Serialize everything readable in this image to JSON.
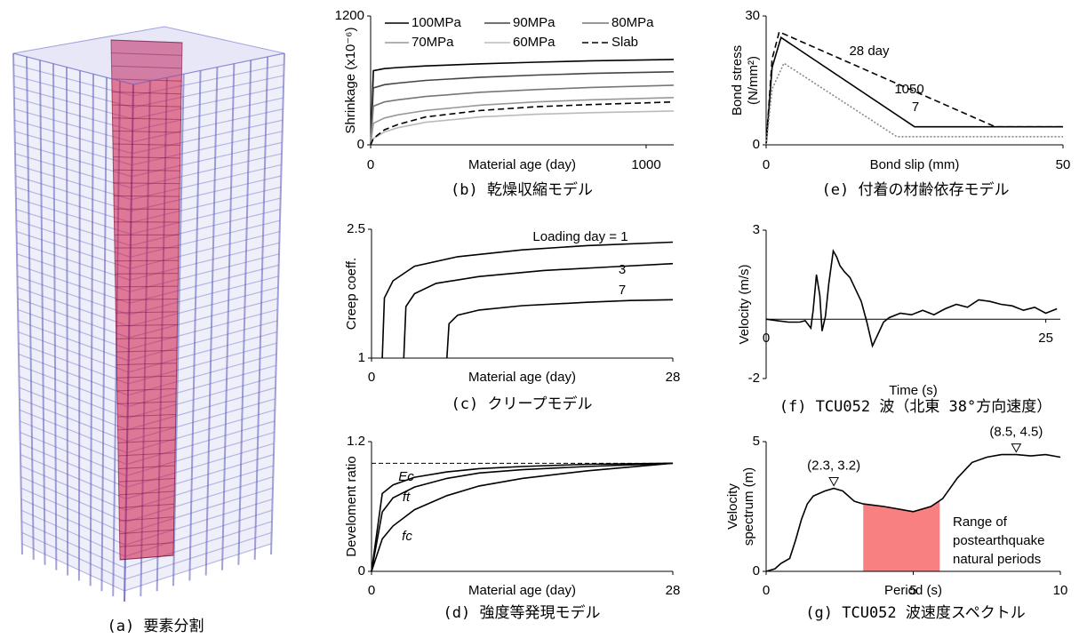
{
  "figure_a": {
    "caption": "(a) 要素分割"
  },
  "chart_data": [
    {
      "type": "line",
      "caption": "(b) 乾燥収縮モデル",
      "xlabel": "Material age (day)",
      "ylabel": [
        "Shrinkage (x10⁻⁶)"
      ],
      "xlim": [
        0,
        1100
      ],
      "xticks": [
        0,
        1000
      ],
      "ylim": [
        0,
        1200
      ],
      "yticks": [
        0,
        1200
      ],
      "legend": true,
      "x": [
        0,
        10,
        50,
        100,
        200,
        400,
        600,
        800,
        1100
      ],
      "series": [
        {
          "name": "100MPa",
          "color": "#000000",
          "dash": "solid",
          "values": [
            0,
            690,
            710,
            720,
            735,
            755,
            770,
            783,
            795
          ]
        },
        {
          "name": "90MPa",
          "color": "#444444",
          "dash": "solid",
          "values": [
            0,
            530,
            560,
            575,
            600,
            630,
            650,
            665,
            680
          ]
        },
        {
          "name": "80MPa",
          "color": "#777777",
          "dash": "solid",
          "values": [
            0,
            360,
            400,
            420,
            450,
            490,
            515,
            535,
            555
          ]
        },
        {
          "name": "70MPa",
          "color": "#999999",
          "dash": "solid",
          "values": [
            0,
            200,
            250,
            280,
            320,
            370,
            400,
            420,
            440
          ]
        },
        {
          "name": "60MPa",
          "color": "#bbbbbb",
          "dash": "solid",
          "values": [
            0,
            60,
            120,
            160,
            210,
            260,
            285,
            300,
            315
          ]
        },
        {
          "name": "Slab",
          "color": "#000000",
          "dash": "dashed",
          "values": [
            0,
            60,
            140,
            190,
            260,
            320,
            355,
            375,
            400
          ]
        }
      ]
    },
    {
      "type": "line",
      "caption": "(c) クリープモデル",
      "xlabel": "Material age (day)",
      "ylabel": [
        "Creep coeff."
      ],
      "xlim": [
        0,
        28
      ],
      "xticks": [
        0,
        28
      ],
      "ylim": [
        1,
        2.5
      ],
      "yticks": [
        1,
        2.5
      ],
      "series": [
        {
          "name": "Loading day = 1",
          "color": "#000000",
          "dash": "solid",
          "x": [
            1,
            1.2,
            2,
            4,
            8,
            14,
            20,
            28
          ],
          "values": [
            1,
            1.7,
            1.9,
            2.07,
            2.18,
            2.26,
            2.31,
            2.35
          ]
        },
        {
          "name": "3",
          "color": "#000000",
          "dash": "solid",
          "x": [
            3,
            3.2,
            4,
            6,
            10,
            16,
            22,
            28
          ],
          "values": [
            1,
            1.6,
            1.75,
            1.87,
            1.95,
            2.02,
            2.06,
            2.1
          ]
        },
        {
          "name": "7",
          "color": "#000000",
          "dash": "solid",
          "x": [
            7,
            7.2,
            8,
            10,
            14,
            20,
            24,
            28
          ],
          "values": [
            1,
            1.4,
            1.5,
            1.56,
            1.61,
            1.65,
            1.67,
            1.68
          ]
        }
      ]
    },
    {
      "type": "line",
      "caption": "(d) 強度等発現モデル",
      "xlabel": "Material age (day)",
      "ylabel": [
        "Develoment ratio"
      ],
      "xlim": [
        0,
        28
      ],
      "xticks": [
        0,
        28
      ],
      "ylim": [
        0,
        1.2
      ],
      "yticks": [
        0,
        1.2
      ],
      "ref_line": 1,
      "x": [
        0,
        1,
        2,
        4,
        7,
        10,
        14,
        20,
        28
      ],
      "series": [
        {
          "name": "Ec",
          "color": "#000000",
          "dash": "solid",
          "values": [
            0,
            0.72,
            0.8,
            0.87,
            0.92,
            0.95,
            0.97,
            0.99,
            1.0
          ]
        },
        {
          "name": "ft",
          "color": "#000000",
          "dash": "solid",
          "values": [
            0,
            0.55,
            0.68,
            0.78,
            0.86,
            0.91,
            0.94,
            0.97,
            1.0
          ]
        },
        {
          "name": "fc",
          "color": "#000000",
          "dash": "solid",
          "values": [
            0,
            0.3,
            0.42,
            0.57,
            0.7,
            0.79,
            0.86,
            0.93,
            1.0
          ]
        }
      ]
    },
    {
      "type": "line",
      "caption": "(e) 付着の材齢依存モデル",
      "xlabel": "Bond slip (mm)",
      "ylabel": [
        "Bond stress",
        "(N/mm²)"
      ],
      "xlim": [
        0,
        50
      ],
      "xticks": [
        0,
        50
      ],
      "ylim": [
        0,
        30
      ],
      "yticks": [
        0,
        30
      ],
      "series": [
        {
          "name": "28 day",
          "color": "#000000",
          "dash": "dashed",
          "x": [
            0,
            1,
            2.2,
            38.6,
            50
          ],
          "values": [
            0,
            20,
            26.3,
            4.2,
            4.2
          ]
        },
        {
          "name": "1050",
          "color": "#000000",
          "dash": "solid",
          "x": [
            0,
            1,
            2.5,
            25,
            50
          ],
          "values": [
            0,
            18,
            25,
            4.2,
            4.2
          ]
        },
        {
          "name": "7",
          "color": "#888888",
          "dash": "dotted",
          "x": [
            0,
            1,
            3,
            22,
            50
          ],
          "values": [
            0,
            13,
            19,
            1.9,
            1.9
          ]
        }
      ]
    },
    {
      "type": "line",
      "caption": "(f) TCU052 波（北東 38°方向速度）",
      "xlabel": "Time (s)",
      "ylabel": [
        "Velocity (m/s)"
      ],
      "xlim": [
        0,
        26.3
      ],
      "xticks": [
        0,
        25
      ],
      "ylim": [
        -2,
        3
      ],
      "yticks": [
        -2,
        3
      ],
      "x": [
        0,
        1,
        2,
        3,
        3.5,
        4,
        4.2,
        4.5,
        4.8,
        5,
        5.3,
        5.6,
        6,
        6.3,
        6.6,
        7,
        7.5,
        8,
        8.5,
        9,
        9.5,
        10,
        10.5,
        11,
        12,
        13,
        14,
        15,
        16,
        17,
        18,
        19,
        20,
        21,
        22,
        23,
        24,
        25,
        26
      ],
      "series": [
        {
          "color": "#000000",
          "dash": "solid",
          "values": [
            0,
            -0.05,
            -0.1,
            -0.1,
            -0.05,
            -0.3,
            0.3,
            1.5,
            0.8,
            -0.4,
            0.1,
            1.2,
            2.3,
            2.1,
            1.8,
            1.6,
            1.4,
            1.0,
            0.6,
            -0.1,
            -0.9,
            -0.5,
            -0.1,
            0.05,
            0.2,
            0.15,
            0.3,
            0.15,
            0.35,
            0.5,
            0.4,
            0.65,
            0.6,
            0.5,
            0.45,
            0.3,
            0.4,
            0.2,
            0.35
          ]
        }
      ]
    },
    {
      "type": "line",
      "caption": "(g) TCU052 波速度スペクトル",
      "xlabel": "Period (s)",
      "ylabel": [
        "Velocity",
        "spectrum (m)"
      ],
      "xlim": [
        0,
        10
      ],
      "xticks": [
        0,
        5,
        10
      ],
      "ylim": [
        0,
        5
      ],
      "yticks": [
        0,
        5
      ],
      "highlight": [
        3.3,
        5.9
      ],
      "highlight_color": "#f88080",
      "annotation": [
        "Range of",
        "postearthquake",
        "natural periods"
      ],
      "peaks": [
        {
          "x": 2.3,
          "y": 3.2,
          "label": "(2.3, 3.2)"
        },
        {
          "x": 8.5,
          "y": 4.5,
          "label": "(8.5, 4.5)"
        }
      ],
      "x": [
        0,
        0.3,
        0.5,
        0.8,
        1,
        1.2,
        1.4,
        1.6,
        1.8,
        2,
        2.3,
        2.6,
        3,
        3.3,
        4,
        5,
        5.6,
        6,
        6.5,
        7,
        7.5,
        8,
        8.5,
        9,
        9.5,
        10
      ],
      "series": [
        {
          "color": "#000000",
          "dash": "solid",
          "values": [
            0,
            0.1,
            0.3,
            0.5,
            1.2,
            2.0,
            2.6,
            2.9,
            3.0,
            3.1,
            3.2,
            3.1,
            2.7,
            2.6,
            2.5,
            2.3,
            2.5,
            2.8,
            3.6,
            4.2,
            4.4,
            4.5,
            4.5,
            4.45,
            4.5,
            4.4
          ]
        }
      ]
    }
  ]
}
